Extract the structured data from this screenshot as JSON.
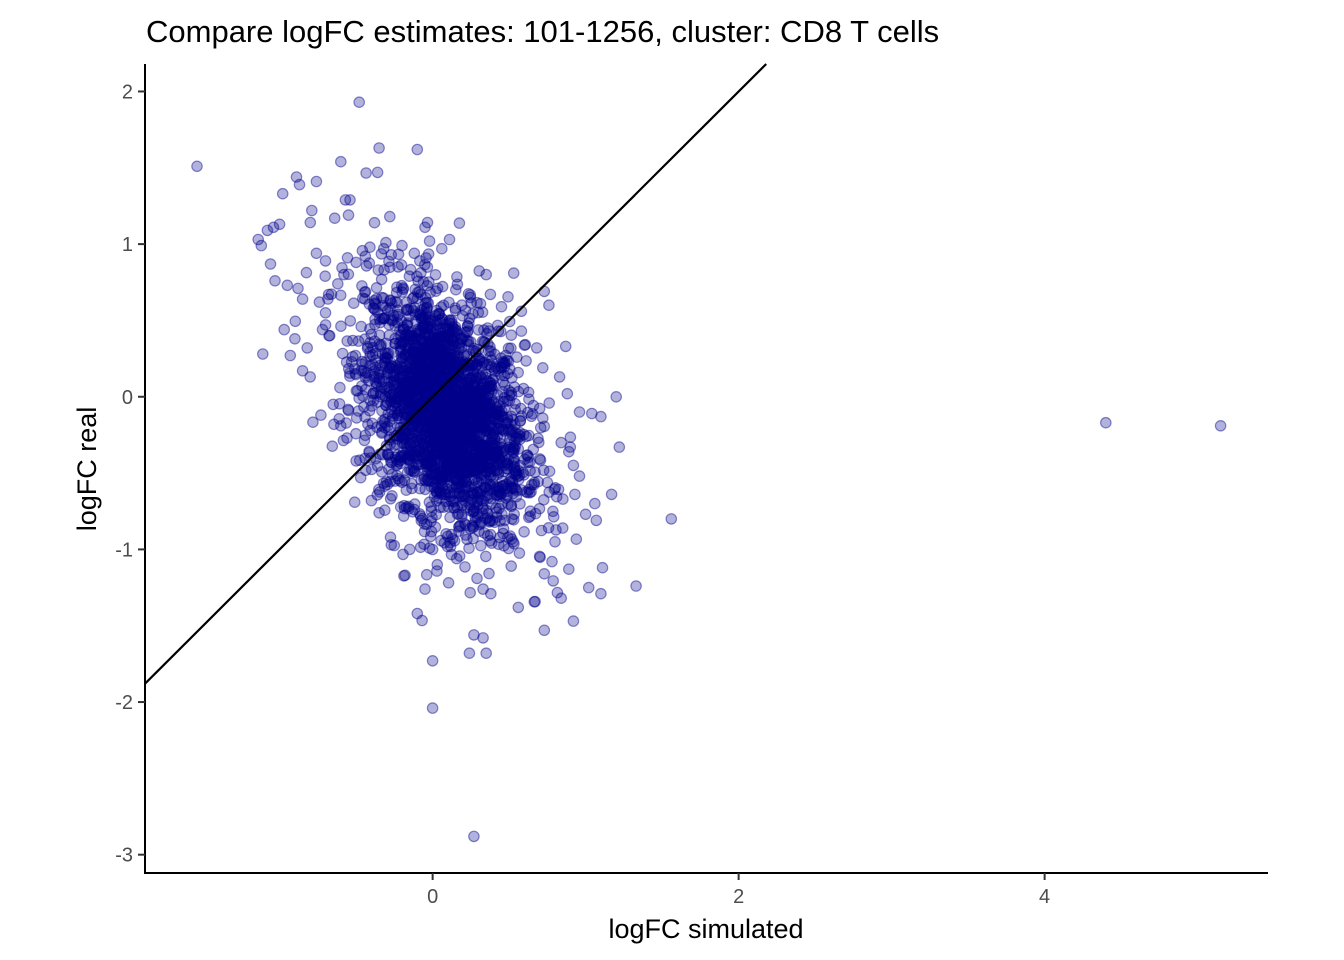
{
  "chart_data": {
    "type": "scatter",
    "title": "Compare logFC estimates: 101-1256, cluster: CD8 T cells",
    "xlabel": "logFC simulated",
    "ylabel": "logFC real",
    "xlim": [
      -1.88,
      5.46
    ],
    "ylim": [
      -3.12,
      2.18
    ],
    "x_ticks": [
      0,
      2,
      4
    ],
    "y_ticks": [
      -3,
      -2,
      -1,
      0,
      1,
      2
    ],
    "x_tick_labels": [
      "0",
      "2",
      "4"
    ],
    "y_tick_labels": [
      "-3",
      "-2",
      "-1",
      "0",
      "1",
      "2"
    ],
    "grid": false,
    "legend": "none",
    "point_color": "#00008B",
    "reference_line": {
      "type": "identity",
      "slope": 1,
      "intercept": 0
    },
    "points": [
      [
        -1.54,
        1.51
      ],
      [
        -0.48,
        1.93
      ],
      [
        -0.35,
        1.63
      ],
      [
        -0.1,
        1.62
      ],
      [
        -0.36,
        1.47
      ],
      [
        -0.6,
        1.54
      ],
      [
        -0.89,
        1.44
      ],
      [
        -0.87,
        1.39
      ],
      [
        -0.76,
        1.41
      ],
      [
        -0.98,
        1.33
      ],
      [
        -0.57,
        1.29
      ],
      [
        -0.54,
        1.29
      ],
      [
        -0.79,
        1.22
      ],
      [
        -0.55,
        1.19
      ],
      [
        -0.64,
        1.17
      ],
      [
        -1.0,
        1.13
      ],
      [
        -1.04,
        1.11
      ],
      [
        -1.08,
        1.09
      ],
      [
        -1.14,
        1.03
      ],
      [
        -1.12,
        0.99
      ],
      [
        -1.06,
        0.87
      ],
      [
        -1.03,
        0.76
      ],
      [
        -0.95,
        0.73
      ],
      [
        -0.88,
        0.71
      ],
      [
        -0.85,
        0.64
      ],
      [
        -0.76,
        0.94
      ],
      [
        -0.7,
        0.89
      ],
      [
        -0.38,
        1.14
      ],
      [
        -0.28,
        1.18
      ],
      [
        -0.05,
        1.11
      ],
      [
        -0.02,
        1.02
      ],
      [
        0.11,
        1.03
      ],
      [
        0.06,
        0.97
      ],
      [
        0.35,
        0.8
      ],
      [
        0.53,
        0.81
      ],
      [
        0.73,
        0.69
      ],
      [
        0.76,
        0.6
      ],
      [
        0.45,
        0.59
      ],
      [
        0.58,
        0.56
      ],
      [
        0.43,
        0.43
      ],
      [
        0.58,
        0.43
      ],
      [
        0.87,
        0.33
      ],
      [
        0.68,
        0.32
      ],
      [
        0.55,
        0.26
      ],
      [
        0.72,
        0.19
      ],
      [
        0.83,
        0.13
      ],
      [
        0.88,
        0.02
      ],
      [
        1.2,
        0.0
      ],
      [
        0.96,
        -0.1
      ],
      [
        1.04,
        -0.11
      ],
      [
        1.1,
        -0.13
      ],
      [
        0.84,
        -0.3
      ],
      [
        0.9,
        -0.33
      ],
      [
        1.22,
        -0.33
      ],
      [
        0.89,
        -0.36
      ],
      [
        0.92,
        -0.45
      ],
      [
        0.96,
        -0.52
      ],
      [
        0.93,
        -0.64
      ],
      [
        1.06,
        -0.7
      ],
      [
        1.17,
        -0.64
      ],
      [
        1.0,
        -0.77
      ],
      [
        1.07,
        -0.81
      ],
      [
        1.56,
        -0.8
      ],
      [
        0.85,
        -0.86
      ],
      [
        0.8,
        -0.95
      ],
      [
        0.78,
        -1.08
      ],
      [
        0.89,
        -1.13
      ],
      [
        1.11,
        -1.12
      ],
      [
        0.73,
        -1.16
      ],
      [
        1.02,
        -1.25
      ],
      [
        1.33,
        -1.24
      ],
      [
        1.1,
        -1.29
      ],
      [
        0.84,
        -1.32
      ],
      [
        0.92,
        -1.47
      ],
      [
        0.73,
        -1.53
      ],
      [
        0.56,
        -1.38
      ],
      [
        0.38,
        -1.29
      ],
      [
        0.33,
        -1.26
      ],
      [
        0.29,
        -1.19
      ],
      [
        0.33,
        -1.58
      ],
      [
        0.27,
        -1.56
      ],
      [
        0.35,
        -1.68
      ],
      [
        0.24,
        -1.68
      ],
      [
        0.0,
        -1.73
      ],
      [
        0.0,
        -2.04
      ],
      [
        0.27,
        -2.88
      ],
      [
        -0.1,
        -1.42
      ],
      [
        -0.05,
        -1.26
      ],
      [
        -0.18,
        -1.17
      ],
      [
        -0.15,
        -1.0
      ],
      [
        -0.27,
        -0.97
      ],
      [
        -0.35,
        -0.76
      ],
      [
        -0.4,
        -0.68
      ],
      [
        -0.47,
        -0.53
      ],
      [
        -0.5,
        -0.42
      ],
      [
        -0.56,
        -0.27
      ],
      [
        -0.6,
        -0.19
      ],
      [
        -0.55,
        -0.09
      ],
      [
        -0.65,
        -0.05
      ],
      [
        -0.73,
        -0.12
      ],
      [
        -0.8,
        0.13
      ],
      [
        -0.85,
        0.17
      ],
      [
        -0.82,
        0.32
      ],
      [
        -0.9,
        0.38
      ],
      [
        -0.93,
        0.27
      ],
      [
        -1.11,
        0.28
      ],
      [
        -0.97,
        0.44
      ],
      [
        -0.72,
        0.44
      ],
      [
        -0.7,
        0.55
      ],
      [
        -0.74,
        0.62
      ],
      [
        -0.68,
        0.67
      ],
      [
        -0.62,
        0.74
      ],
      [
        -0.58,
        0.8
      ],
      [
        -0.5,
        0.88
      ],
      [
        -0.44,
        0.92
      ],
      [
        -0.41,
        0.98
      ],
      [
        -0.32,
        0.97
      ],
      [
        -0.27,
        0.93
      ],
      [
        -0.2,
        0.99
      ],
      [
        -0.12,
        0.94
      ],
      [
        4.4,
        -0.17
      ],
      [
        5.15,
        -0.19
      ]
    ]
  }
}
